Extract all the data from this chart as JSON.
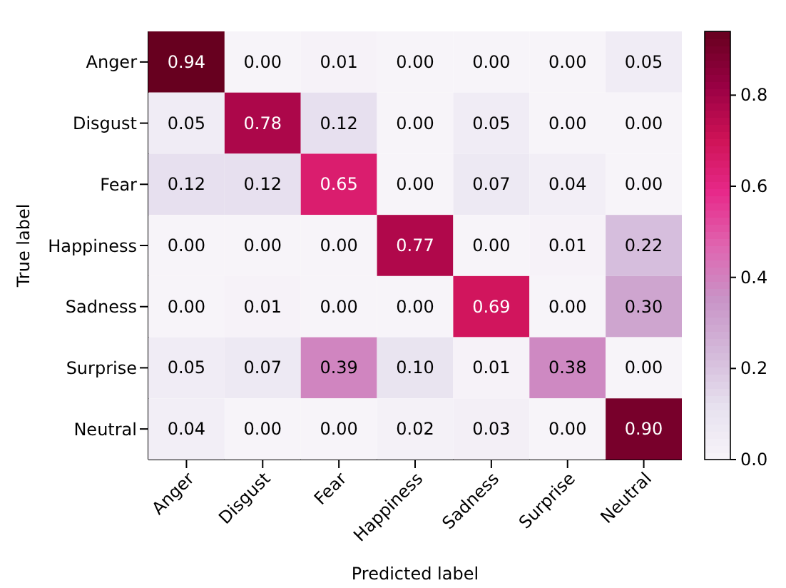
{
  "chart_data": {
    "type": "heatmap",
    "xlabel": "Predicted label",
    "ylabel": "True label",
    "categories": [
      "Anger",
      "Disgust",
      "Fear",
      "Happiness",
      "Sadness",
      "Surprise",
      "Neutral"
    ],
    "y_categories": [
      "Anger",
      "Disgust",
      "Fear",
      "Happiness",
      "Sadness",
      "Surprise",
      "Neutral"
    ],
    "cells": [
      [
        0.94,
        0.0,
        0.01,
        0.0,
        0.0,
        0.0,
        0.05
      ],
      [
        0.05,
        0.78,
        0.12,
        0.0,
        0.05,
        0.0,
        0.0
      ],
      [
        0.12,
        0.12,
        0.65,
        0.0,
        0.07,
        0.04,
        0.0
      ],
      [
        0.0,
        0.0,
        0.0,
        0.77,
        0.0,
        0.01,
        0.22
      ],
      [
        0.0,
        0.01,
        0.0,
        0.0,
        0.69,
        0.0,
        0.3
      ],
      [
        0.05,
        0.07,
        0.39,
        0.1,
        0.01,
        0.38,
        0.0
      ],
      [
        0.04,
        0.0,
        0.0,
        0.02,
        0.03,
        0.0,
        0.9
      ]
    ],
    "cell_labels": [
      [
        "0.94",
        "0.00",
        "0.01",
        "0.00",
        "0.00",
        "0.00",
        "0.05"
      ],
      [
        "0.05",
        "0.78",
        "0.12",
        "0.00",
        "0.05",
        "0.00",
        "0.00"
      ],
      [
        "0.12",
        "0.12",
        "0.65",
        "0.00",
        "0.07",
        "0.04",
        "0.00"
      ],
      [
        "0.00",
        "0.00",
        "0.00",
        "0.77",
        "0.00",
        "0.01",
        "0.22"
      ],
      [
        "0.00",
        "0.01",
        "0.00",
        "0.00",
        "0.69",
        "0.00",
        "0.30"
      ],
      [
        "0.05",
        "0.07",
        "0.39",
        "0.10",
        "0.01",
        "0.38",
        "0.00"
      ],
      [
        "0.04",
        "0.00",
        "0.00",
        "0.02",
        "0.03",
        "0.00",
        "0.90"
      ]
    ],
    "clim": [
      0,
      0.94
    ],
    "cticks": [
      {
        "value": 0,
        "label": "0.0"
      },
      {
        "value": 0.2,
        "label": "0.2"
      },
      {
        "value": 0.4,
        "label": "0.4"
      },
      {
        "value": 0.6,
        "label": "0.6"
      },
      {
        "value": 0.8,
        "label": "0.8"
      }
    ]
  }
}
